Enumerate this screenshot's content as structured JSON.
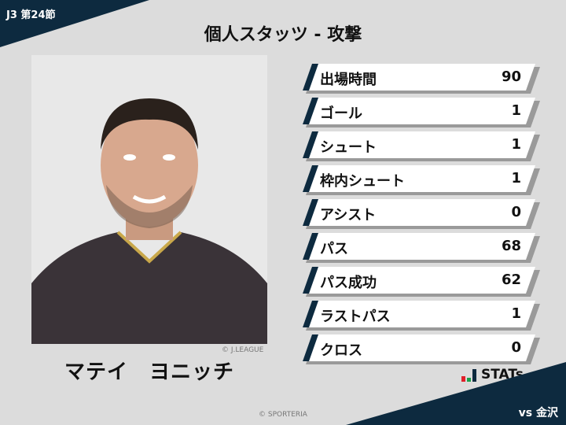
{
  "header": {
    "round": "J3 第24節",
    "title": "個人スタッツ - 攻撃",
    "opponent": "vs 金沢"
  },
  "player": {
    "name": "マテイ　ヨニッチ",
    "photo_credit": "© J.LEAGUE"
  },
  "stats": [
    {
      "label": "出場時間",
      "value": "90"
    },
    {
      "label": "ゴール",
      "value": "1"
    },
    {
      "label": "シュート",
      "value": "1"
    },
    {
      "label": "枠内シュート",
      "value": "1"
    },
    {
      "label": "アシスト",
      "value": "0"
    },
    {
      "label": "パス",
      "value": "68"
    },
    {
      "label": "パス成功",
      "value": "62"
    },
    {
      "label": "ラストパス",
      "value": "1"
    },
    {
      "label": "クロス",
      "value": "0"
    }
  ],
  "brand": {
    "logo_text": "STATs",
    "colors": {
      "navy": "#0d2a3f",
      "red": "#e0202a",
      "green": "#1aa04a"
    }
  },
  "footer": {
    "copyright": "© SPORTERIA"
  }
}
